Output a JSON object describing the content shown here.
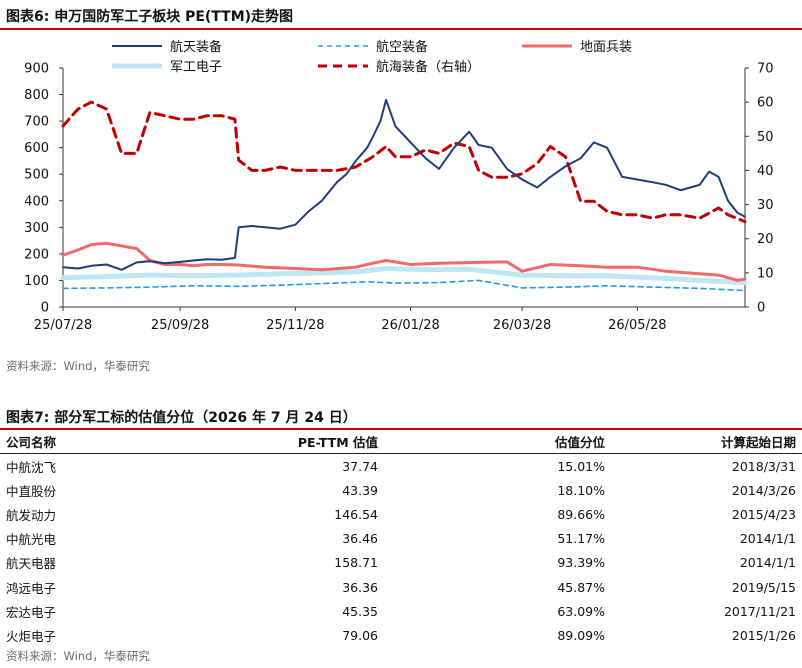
{
  "figure6": {
    "title": "图表6:   申万国防军工子板块 PE(TTM)走势图",
    "source": "资料来源：Wind，华泰研究"
  },
  "chart_data": {
    "type": "line",
    "legend": [
      {
        "name": "航天装备",
        "color": "#1f3d7a",
        "style": "solid"
      },
      {
        "name": "航空装备",
        "color": "#1f9be0",
        "style": "dashed"
      },
      {
        "name": "地面兵装",
        "color": "#f06a6a",
        "style": "solid"
      },
      {
        "name": "军工电子",
        "color": "#bfe6f5",
        "style": "solid"
      },
      {
        "name": "航海装备（右轴）",
        "color": "#c00000",
        "style": "dashed"
      }
    ],
    "x_ticks": [
      "25/07/28",
      "25/09/28",
      "25/11/28",
      "26/01/28",
      "26/03/28",
      "26/05/28"
    ],
    "y_left": {
      "min": 0,
      "max": 900,
      "ticks": [
        0,
        100,
        200,
        300,
        400,
        500,
        600,
        700,
        800,
        900
      ]
    },
    "y_right": {
      "min": 0,
      "max": 70,
      "ticks": [
        0,
        10,
        20,
        30,
        40,
        50,
        60,
        70
      ]
    },
    "series": [
      {
        "name": "航天装备",
        "axis": "left",
        "x": [
          "2025-07-28",
          "2025-08-05",
          "2025-08-12",
          "2025-08-20",
          "2025-08-28",
          "2025-09-05",
          "2025-09-12",
          "2025-09-20",
          "2025-09-28",
          "2025-10-05",
          "2025-10-12",
          "2025-10-20",
          "2025-10-27",
          "2025-10-29",
          "2025-11-05",
          "2025-11-12",
          "2025-11-20",
          "2025-11-28",
          "2025-12-05",
          "2025-12-12",
          "2025-12-20",
          "2025-12-25",
          "2025-12-30",
          "2026-01-05",
          "2026-01-08",
          "2026-01-12",
          "2026-01-15",
          "2026-01-20",
          "2026-01-28",
          "2026-02-05",
          "2026-02-12",
          "2026-02-20",
          "2026-02-28",
          "2026-03-05",
          "2026-03-12",
          "2026-03-20",
          "2026-03-28",
          "2026-04-05",
          "2026-04-12",
          "2026-04-20",
          "2026-04-28",
          "2026-05-05",
          "2026-05-12",
          "2026-05-20",
          "2026-05-28",
          "2026-06-05",
          "2026-06-12",
          "2026-06-20",
          "2026-06-25",
          "2026-06-30",
          "2026-07-05",
          "2026-07-10",
          "2026-07-15",
          "2026-07-20",
          "2026-07-24"
        ],
        "values": [
          150,
          145,
          155,
          160,
          140,
          168,
          172,
          165,
          170,
          175,
          180,
          178,
          185,
          300,
          305,
          300,
          295,
          310,
          360,
          400,
          470,
          500,
          550,
          600,
          640,
          700,
          780,
          680,
          620,
          560,
          520,
          600,
          660,
          610,
          600,
          520,
          480,
          450,
          490,
          530,
          560,
          620,
          600,
          490,
          480,
          470,
          460,
          440,
          450,
          460,
          510,
          490,
          400,
          355,
          340
        ]
      },
      {
        "name": "航空装备",
        "axis": "left",
        "x": [
          "2025-07-28",
          "2025-08-20",
          "2025-09-12",
          "2025-10-05",
          "2025-10-29",
          "2025-11-20",
          "2025-12-12",
          "2026-01-05",
          "2026-01-20",
          "2026-02-12",
          "2026-03-05",
          "2026-03-28",
          "2026-04-20",
          "2026-05-12",
          "2026-06-05",
          "2026-06-30",
          "2026-07-24"
        ],
        "values": [
          70,
          72,
          75,
          80,
          78,
          82,
          88,
          95,
          90,
          92,
          100,
          72,
          75,
          80,
          75,
          70,
          62
        ]
      },
      {
        "name": "地面兵装",
        "axis": "left",
        "x": [
          "2025-07-28",
          "2025-08-05",
          "2025-08-12",
          "2025-08-20",
          "2025-08-28",
          "2025-09-05",
          "2025-09-12",
          "2025-09-20",
          "2025-09-28",
          "2025-10-05",
          "2025-10-12",
          "2025-10-20",
          "2025-10-29",
          "2025-11-12",
          "2025-11-28",
          "2025-12-12",
          "2025-12-30",
          "2026-01-08",
          "2026-01-15",
          "2026-01-28",
          "2026-02-12",
          "2026-03-05",
          "2026-03-20",
          "2026-03-28",
          "2026-04-12",
          "2026-04-28",
          "2026-05-12",
          "2026-05-28",
          "2026-06-12",
          "2026-06-30",
          "2026-07-10",
          "2026-07-20",
          "2026-07-24"
        ],
        "values": [
          195,
          215,
          235,
          240,
          230,
          220,
          175,
          160,
          160,
          155,
          160,
          160,
          158,
          150,
          145,
          140,
          150,
          165,
          175,
          160,
          165,
          168,
          170,
          135,
          160,
          155,
          150,
          150,
          135,
          125,
          120,
          100,
          105
        ]
      },
      {
        "name": "军工电子",
        "axis": "left",
        "x": [
          "2025-07-28",
          "2025-08-20",
          "2025-09-12",
          "2025-10-05",
          "2025-10-29",
          "2025-11-20",
          "2025-12-12",
          "2025-12-30",
          "2026-01-15",
          "2026-02-05",
          "2026-02-28",
          "2026-03-28",
          "2026-04-20",
          "2026-05-12",
          "2026-06-05",
          "2026-06-30",
          "2026-07-24"
        ],
        "values": [
          110,
          115,
          120,
          118,
          120,
          125,
          128,
          132,
          145,
          140,
          142,
          120,
          118,
          118,
          110,
          100,
          92
        ]
      },
      {
        "name": "航海装备（右轴）",
        "axis": "right",
        "x": [
          "2025-07-28",
          "2025-08-05",
          "2025-08-12",
          "2025-08-20",
          "2025-08-28",
          "2025-09-05",
          "2025-09-12",
          "2025-09-20",
          "2025-09-28",
          "2025-10-05",
          "2025-10-12",
          "2025-10-20",
          "2025-10-27",
          "2025-10-29",
          "2025-11-05",
          "2025-11-12",
          "2025-11-20",
          "2025-11-28",
          "2025-12-05",
          "2025-12-12",
          "2025-12-20",
          "2025-12-30",
          "2026-01-08",
          "2026-01-15",
          "2026-01-20",
          "2026-01-28",
          "2026-02-05",
          "2026-02-12",
          "2026-02-20",
          "2026-02-28",
          "2026-03-05",
          "2026-03-12",
          "2026-03-20",
          "2026-03-28",
          "2026-04-05",
          "2026-04-12",
          "2026-04-20",
          "2026-04-28",
          "2026-05-05",
          "2026-05-12",
          "2026-05-20",
          "2026-05-28",
          "2026-06-05",
          "2026-06-12",
          "2026-06-20",
          "2026-06-30",
          "2026-07-10",
          "2026-07-15",
          "2026-07-24"
        ],
        "values": [
          53,
          58,
          60,
          58,
          45,
          45,
          57,
          56,
          55,
          55,
          56,
          56,
          55,
          43,
          40,
          40,
          41,
          40,
          40,
          40,
          40,
          41,
          44,
          47,
          44,
          44,
          46,
          45,
          48,
          47,
          40,
          38,
          38,
          39,
          42,
          47,
          44,
          31,
          31,
          28,
          27,
          27,
          26,
          27,
          27,
          26,
          29,
          27,
          25
        ]
      }
    ]
  },
  "table7": {
    "title": "图表7:   部分军工标的估值分位（2026 年 7 月 24 日）",
    "headers": [
      "公司名称",
      "PE-TTM 估值",
      "估值分位",
      "计算起始日期"
    ],
    "rows": [
      [
        "中航沈飞",
        "37.74",
        "15.01%",
        "2018/3/31"
      ],
      [
        "中直股份",
        "43.39",
        "18.10%",
        "2014/3/26"
      ],
      [
        "航发动力",
        "146.54",
        "89.66%",
        "2015/4/23"
      ],
      [
        "中航光电",
        "36.46",
        "51.17%",
        "2014/1/1"
      ],
      [
        "航天电器",
        "158.71",
        "93.39%",
        "2014/1/1"
      ],
      [
        "鸿远电子",
        "36.36",
        "45.87%",
        "2019/5/15"
      ],
      [
        "宏达电子",
        "45.35",
        "63.09%",
        "2017/11/21"
      ],
      [
        "火炬电子",
        "79.06",
        "89.09%",
        "2015/1/26"
      ]
    ],
    "source": "资料来源：Wind，华泰研究"
  }
}
